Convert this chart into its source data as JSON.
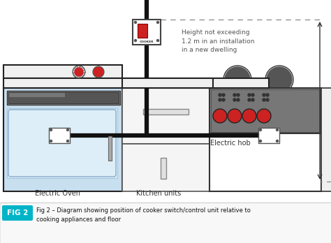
{
  "fig_label": "FIG 2",
  "fig_label_color": "#00b4c8",
  "caption": "Fig 2 – Diagram showing position of cooker switch/control unit relative to\ncooking appliances and floor",
  "height_text": "Height not exceeding\n1.2 m in an installation\nin a new dwelling",
  "electric_oven_label": "Electric Oven",
  "kitchen_units_label": "Kitchen units",
  "electric_hob_label": "Electric hob",
  "bg_color": "#ffffff",
  "knob_red": "#cc2222",
  "wire_color": "#111111",
  "text_color": "#333333"
}
